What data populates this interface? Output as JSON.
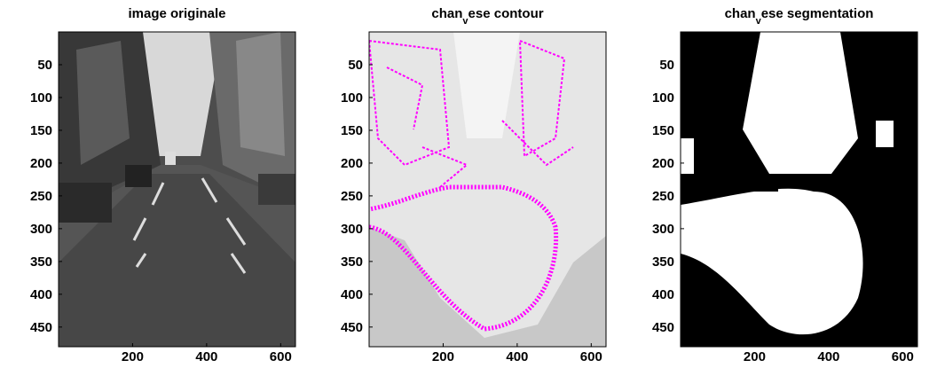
{
  "chart_data": [
    {
      "type": "image",
      "title": "image originale",
      "xlim": [
        0,
        640
      ],
      "ylim": [
        0,
        480
      ],
      "xticks": [
        200,
        400,
        600
      ],
      "yticks": [
        50,
        100,
        150,
        200,
        250,
        300,
        350,
        400,
        450
      ]
    },
    {
      "type": "image",
      "title": [
        "chan",
        "v",
        "ese contour"
      ],
      "xlim": [
        0,
        640
      ],
      "ylim": [
        0,
        480
      ],
      "xticks": [
        200,
        400,
        600
      ],
      "yticks": [
        50,
        100,
        150,
        200,
        250,
        300,
        350,
        400,
        450
      ]
    },
    {
      "type": "image",
      "title": [
        "chan",
        "v",
        "ese segmentation"
      ],
      "xlim": [
        0,
        640
      ],
      "ylim": [
        0,
        480
      ],
      "xticks": [
        200,
        400,
        600
      ],
      "yticks": [
        50,
        100,
        150,
        200,
        250,
        300,
        350,
        400,
        450
      ]
    }
  ]
}
